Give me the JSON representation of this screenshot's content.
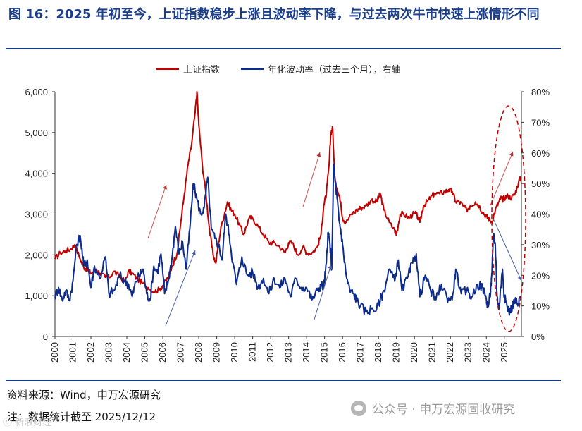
{
  "figure": {
    "title": "图 16：2025 年初至今，上证指数稳步上涨且波动率下降，与过去两次牛市快速上涨情形不同"
  },
  "chart_data": {
    "type": "line",
    "legend": [
      {
        "name": "上证指数",
        "color": "#c00000",
        "axis": "left"
      },
      {
        "name": "年化波动率（过去三个月），右轴",
        "color": "#0d2b8c",
        "axis": "right"
      }
    ],
    "x_ticks": [
      "2000",
      "2001",
      "2002",
      "2003",
      "2004",
      "2005",
      "2006",
      "2007",
      "2008",
      "2009",
      "2010",
      "2011",
      "2012",
      "2013",
      "2014",
      "2015",
      "2016",
      "2017",
      "2018",
      "2019",
      "2020",
      "2021",
      "2022",
      "2023",
      "2024",
      "2025"
    ],
    "xlim": [
      2000,
      2025.95
    ],
    "y_left": {
      "range": [
        0,
        6000
      ],
      "ticks": [
        "0",
        "1,000",
        "2,000",
        "3,000",
        "4,000",
        "5,000",
        "6,000"
      ]
    },
    "y_right": {
      "range": [
        0,
        80
      ],
      "ticks": [
        "0%",
        "10%",
        "20%",
        "30%",
        "40%",
        "50%",
        "60%",
        "70%",
        "80%"
      ]
    },
    "series": [
      {
        "name": "上证指数",
        "axis": "left",
        "color": "#c00000",
        "x": [
          2000.0,
          2000.3,
          2000.6,
          2000.9,
          2001.1,
          2001.4,
          2001.6,
          2001.8,
          2002.0,
          2002.3,
          2002.5,
          2002.8,
          2003.0,
          2003.3,
          2003.6,
          2003.9,
          2004.1,
          2004.3,
          2004.6,
          2004.9,
          2005.2,
          2005.5,
          2005.8,
          2006.0,
          2006.3,
          2006.5,
          2006.8,
          2007.0,
          2007.2,
          2007.4,
          2007.6,
          2007.8,
          2007.9,
          2008.0,
          2008.2,
          2008.4,
          2008.6,
          2008.8,
          2008.95,
          2009.1,
          2009.3,
          2009.6,
          2009.8,
          2010.0,
          2010.3,
          2010.5,
          2010.8,
          2011.0,
          2011.3,
          2011.6,
          2011.9,
          2012.2,
          2012.5,
          2012.8,
          2013.0,
          2013.2,
          2013.5,
          2013.8,
          2014.0,
          2014.3,
          2014.6,
          2014.8,
          2014.95,
          2015.1,
          2015.25,
          2015.35,
          2015.45,
          2015.55,
          2015.7,
          2015.9,
          2016.0,
          2016.2,
          2016.5,
          2016.8,
          2017.0,
          2017.3,
          2017.6,
          2017.9,
          2018.0,
          2018.1,
          2018.3,
          2018.6,
          2018.9,
          2019.0,
          2019.2,
          2019.4,
          2019.7,
          2019.9,
          2020.1,
          2020.3,
          2020.5,
          2020.7,
          2020.9,
          2021.1,
          2021.4,
          2021.7,
          2021.9,
          2022.1,
          2022.3,
          2022.5,
          2022.7,
          2022.9,
          2023.1,
          2023.4,
          2023.6,
          2023.8,
          2024.0,
          2024.1,
          2024.3,
          2024.5,
          2024.7,
          2024.8,
          2024.9,
          2025.0,
          2025.2,
          2025.4,
          2025.6,
          2025.8,
          2025.95
        ],
        "values": [
          1900,
          2050,
          2100,
          2150,
          2250,
          1900,
          1700,
          1650,
          1550,
          1650,
          1550,
          1450,
          1450,
          1600,
          1450,
          1350,
          1600,
          1550,
          1400,
          1300,
          1200,
          1100,
          1150,
          1250,
          1450,
          1700,
          2050,
          2800,
          3500,
          4200,
          4700,
          5500,
          6000,
          5200,
          4200,
          3500,
          2600,
          2000,
          1800,
          2300,
          2800,
          3300,
          3100,
          3000,
          2700,
          2500,
          2900,
          2900,
          2700,
          2500,
          2300,
          2300,
          2200,
          2050,
          2300,
          2300,
          2000,
          2200,
          2050,
          2050,
          2200,
          2500,
          3200,
          3500,
          4200,
          5000,
          5100,
          4000,
          3600,
          3300,
          2900,
          2800,
          3000,
          3100,
          3150,
          3200,
          3350,
          3300,
          3400,
          3500,
          3100,
          2800,
          2600,
          2500,
          3000,
          3000,
          2900,
          3000,
          3000,
          2800,
          3200,
          3300,
          3400,
          3500,
          3500,
          3550,
          3600,
          3550,
          3300,
          3300,
          3200,
          3100,
          3200,
          3300,
          3200,
          3050,
          2950,
          2900,
          2800,
          3100,
          3300,
          3400,
          3350,
          3400,
          3450,
          3400,
          3500,
          3800,
          3900
        ]
      },
      {
        "name": "年化波动率（过去三个月），右轴",
        "axis": "right",
        "color": "#0d2b8c",
        "x": [
          2000.0,
          2000.2,
          2000.4,
          2000.6,
          2000.8,
          2001.0,
          2001.2,
          2001.4,
          2001.6,
          2001.8,
          2002.0,
          2002.2,
          2002.5,
          2002.8,
          2003.0,
          2003.3,
          2003.6,
          2003.9,
          2004.1,
          2004.3,
          2004.5,
          2004.7,
          2004.9,
          2005.1,
          2005.3,
          2005.5,
          2005.7,
          2005.9,
          2006.1,
          2006.3,
          2006.5,
          2006.7,
          2006.9,
          2007.1,
          2007.3,
          2007.5,
          2007.7,
          2007.9,
          2008.1,
          2008.3,
          2008.5,
          2008.7,
          2008.9,
          2009.1,
          2009.3,
          2009.5,
          2009.7,
          2009.9,
          2010.1,
          2010.4,
          2010.7,
          2011.0,
          2011.3,
          2011.6,
          2011.9,
          2012.2,
          2012.5,
          2012.8,
          2013.1,
          2013.4,
          2013.7,
          2014.0,
          2014.3,
          2014.6,
          2014.8,
          2014.95,
          2015.1,
          2015.2,
          2015.3,
          2015.4,
          2015.5,
          2015.6,
          2015.7,
          2015.8,
          2015.9,
          2016.0,
          2016.2,
          2016.4,
          2016.6,
          2016.8,
          2017.0,
          2017.3,
          2017.6,
          2017.9,
          2018.1,
          2018.3,
          2018.6,
          2018.9,
          2019.1,
          2019.3,
          2019.6,
          2019.9,
          2020.1,
          2020.3,
          2020.6,
          2020.9,
          2021.2,
          2021.5,
          2021.8,
          2022.1,
          2022.3,
          2022.6,
          2022.9,
          2023.2,
          2023.5,
          2023.8,
          2024.0,
          2024.1,
          2024.2,
          2024.3,
          2024.4,
          2024.5,
          2024.6,
          2024.7,
          2024.8,
          2024.9,
          2025.0,
          2025.15,
          2025.3,
          2025.45,
          2025.6,
          2025.75,
          2025.9
        ],
        "values": [
          13,
          16,
          12,
          15,
          12,
          18,
          30,
          33,
          23,
          25,
          16,
          23,
          19,
          26,
          14,
          15,
          20,
          18,
          17,
          13,
          18,
          20,
          22,
          14,
          12,
          23,
          21,
          27,
          14,
          18,
          25,
          36,
          27,
          31,
          22,
          35,
          50,
          45,
          40,
          42,
          52,
          35,
          32,
          30,
          25,
          40,
          33,
          24,
          17,
          26,
          20,
          21,
          16,
          19,
          14,
          19,
          16,
          19,
          13,
          19,
          16,
          16,
          12,
          15,
          17,
          16,
          24,
          34,
          30,
          22,
          56,
          50,
          45,
          38,
          35,
          30,
          20,
          15,
          14,
          12,
          10,
          8,
          9,
          9,
          12,
          15,
          22,
          18,
          25,
          15,
          19,
          24,
          27,
          13,
          20,
          15,
          12,
          17,
          13,
          12,
          22,
          14,
          15,
          13,
          17,
          16,
          12,
          10,
          13,
          20,
          33,
          30,
          13,
          9,
          16,
          22,
          13,
          10,
          8,
          10,
          12,
          10,
          13
        ]
      }
    ],
    "annotations": {
      "arrows": 6,
      "ellipse": "2024-2025 highlight"
    }
  },
  "footer": {
    "source": "资料来源：Wind，申万宏源研究",
    "note": "注：数据统计截至 2025/12/12",
    "watermark": "公众号 · 申万宏源固收研究",
    "corner_mark": "ⓒ 新浪财经"
  }
}
